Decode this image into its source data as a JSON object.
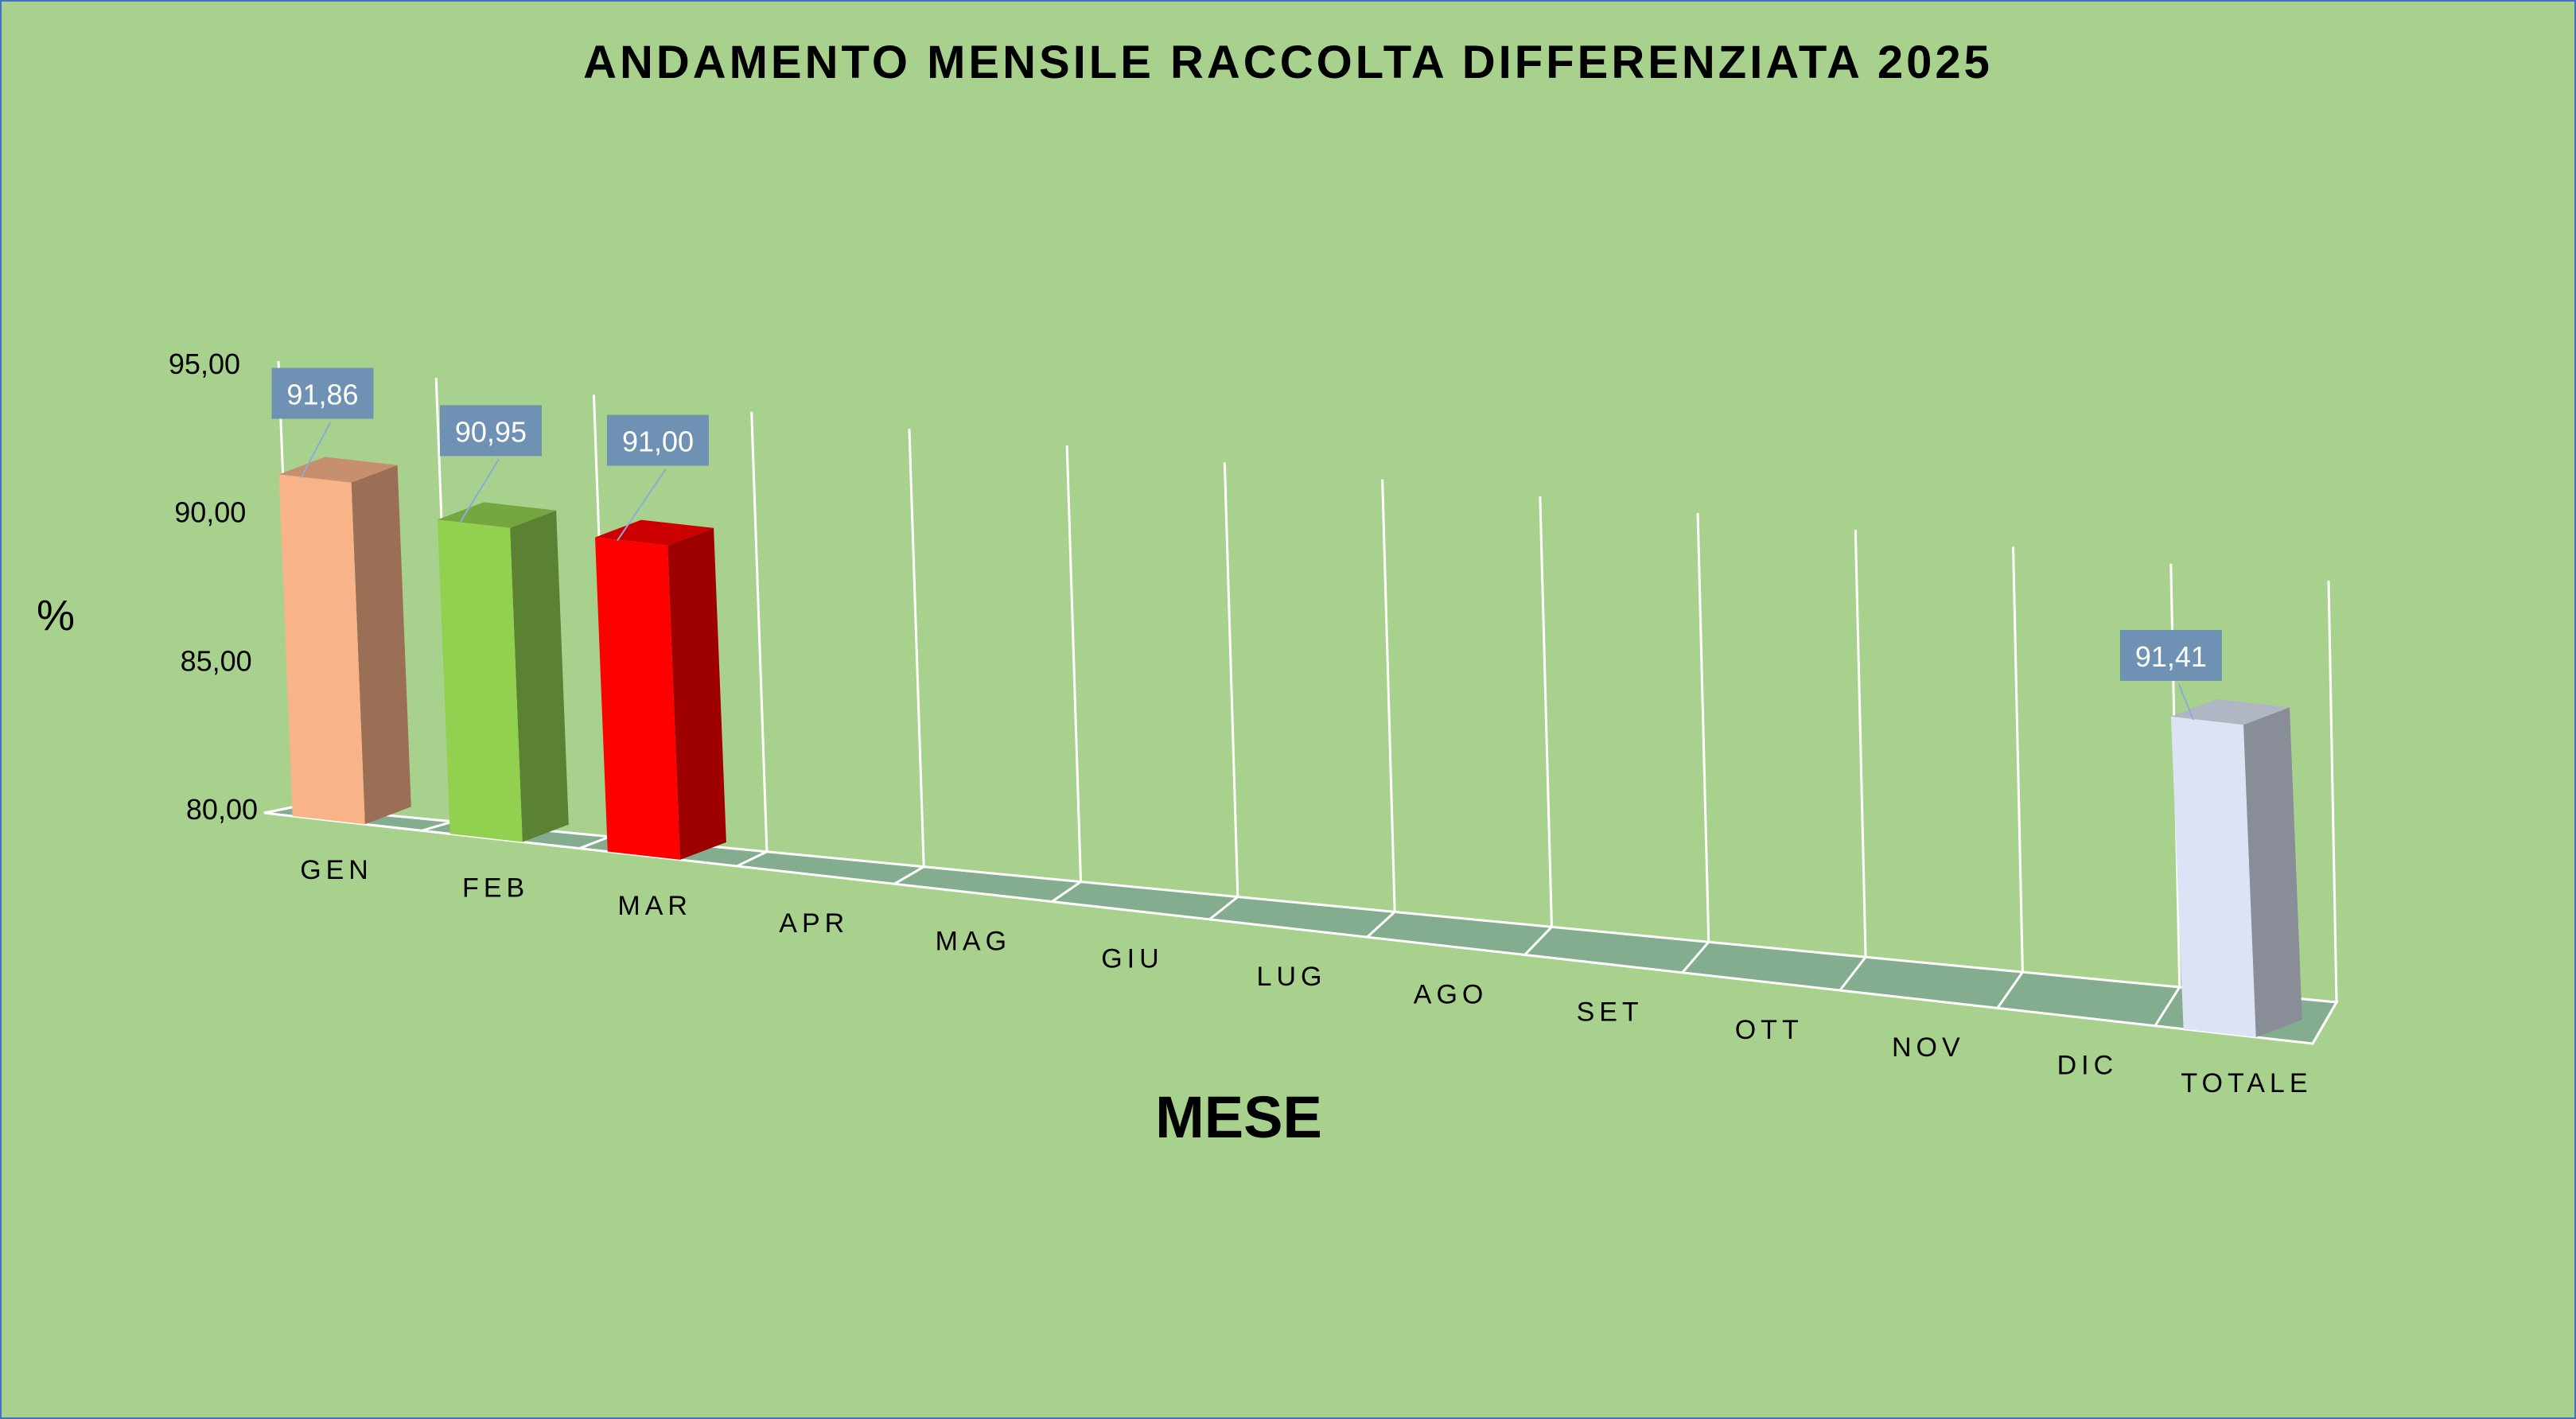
{
  "chart_data": {
    "type": "bar",
    "title": "ANDAMENTO MENSILE RACCOLTA DIFFERENZIATA 2025",
    "xlabel": "MESE",
    "ylabel": "%",
    "categories": [
      "GEN",
      "FEB",
      "MAR",
      "APR",
      "MAG",
      "GIU",
      "LUG",
      "AGO",
      "SET",
      "OTT",
      "NOV",
      "DIC",
      "TOTALE"
    ],
    "values": [
      91.86,
      90.95,
      91.0,
      null,
      null,
      null,
      null,
      null,
      null,
      null,
      null,
      null,
      91.41
    ],
    "data_labels": [
      "91,86",
      "90,95",
      "91,00",
      "",
      "",
      "",
      "",
      "",
      "",
      "",
      "",
      "",
      "91,41"
    ],
    "ylim": [
      80,
      95
    ],
    "y_ticks": [
      80,
      85,
      90,
      95
    ],
    "y_tick_labels": [
      "80,00",
      "85,00",
      "90,00",
      "95,00"
    ],
    "grid": true,
    "legend": "none",
    "style": "3d-column",
    "colors": {
      "background": "#a9d18e",
      "floor": "#84ad8f",
      "grid": "#ffffff",
      "label_box": "#6f92b4",
      "label_text": "#ffffff",
      "bars": [
        "#f8b389",
        "#92d050",
        "#ff0000",
        null,
        null,
        null,
        null,
        null,
        null,
        null,
        null,
        null,
        "#dce3f4"
      ]
    }
  }
}
